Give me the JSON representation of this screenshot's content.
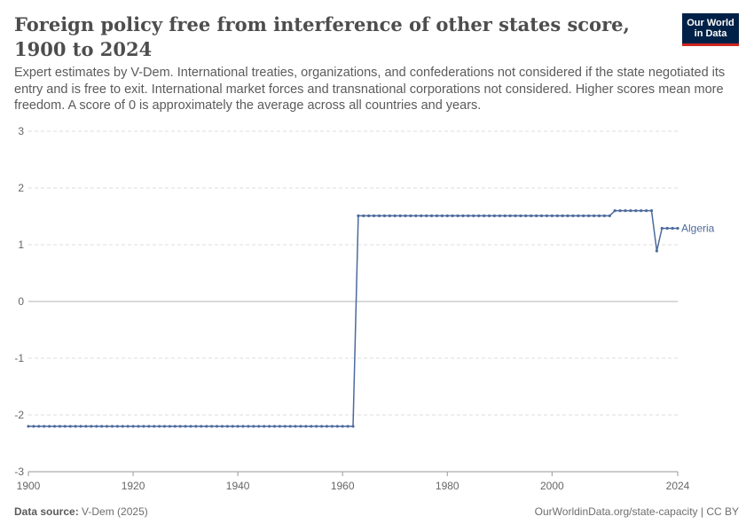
{
  "header": {
    "title": "Foreign policy free from interference of other states score, 1900 to 2024",
    "subtitle": "Expert estimates by V-Dem. International treaties, organizations, and confederations not considered if the state negotiated its entry and is free to exit. International market forces and transnational corporations not considered. Higher scores mean more freedom. A score of 0 is approximately the average across all countries and years.",
    "logo_line1": "Our World",
    "logo_line2": "in Data"
  },
  "footer": {
    "source_label": "Data source:",
    "source_value": "V-Dem (2025)",
    "url": "OurWorldinData.org/state-capacity | CC BY"
  },
  "colors": {
    "series": "#4c6a9c",
    "grid": "#dddddd",
    "zero_line": "#b3b3b3",
    "axis_text": "#666666"
  },
  "chart_data": {
    "type": "line",
    "title": "Foreign policy free from interference of other states score, 1900 to 2024",
    "xlabel": "",
    "ylabel": "",
    "xlim": [
      1900,
      2024
    ],
    "ylim": [
      -3,
      3
    ],
    "x_ticks": [
      1900,
      1920,
      1940,
      1960,
      1980,
      2000,
      2024
    ],
    "y_ticks": [
      3,
      2,
      1,
      0,
      -1,
      -2,
      -3
    ],
    "grid": true,
    "legend": "end-of-line label",
    "series": [
      {
        "name": "Algeria",
        "segments": [
          {
            "from": 1900,
            "to": 1962,
            "value": -2.2
          },
          {
            "from": 1963,
            "to": 2011,
            "value": 1.51
          },
          {
            "from": 2012,
            "to": 2019,
            "value": 1.6
          }
        ],
        "points": [
          [
            2020,
            0.89
          ],
          [
            2021,
            1.29
          ],
          [
            2022,
            1.29
          ],
          [
            2023,
            1.29
          ],
          [
            2024,
            1.29
          ]
        ]
      }
    ]
  }
}
